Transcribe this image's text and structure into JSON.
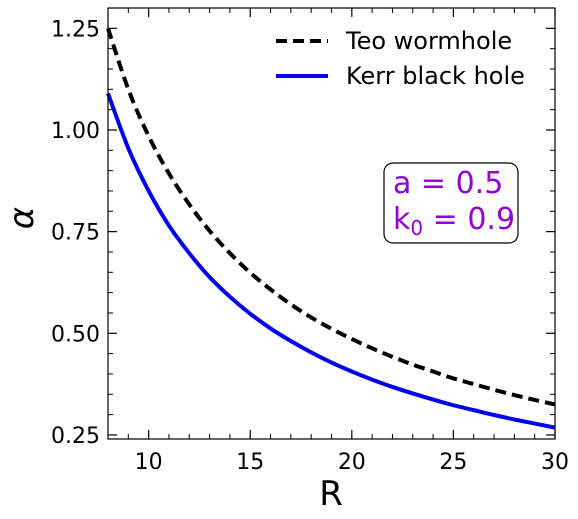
{
  "chart_data": {
    "type": "line",
    "xlabel": "R",
    "ylabel": "α",
    "xlim": [
      8,
      30
    ],
    "ylim": [
      0.24,
      1.3
    ],
    "x_ticks": [
      10,
      15,
      20,
      25,
      30
    ],
    "y_ticks": [
      0.25,
      0.5,
      0.75,
      1.0,
      1.25
    ],
    "x_tick_labels": [
      "10",
      "15",
      "20",
      "25",
      "30"
    ],
    "y_tick_labels": [
      "0.25",
      "0.50",
      "0.75",
      "1.00",
      "1.25"
    ],
    "legend_position": "top-right",
    "series": [
      {
        "name": "Teo wormhole",
        "color": "#000000",
        "style": "dashed",
        "x": [
          8,
          9,
          10,
          11,
          12,
          13,
          14,
          15,
          16,
          17,
          18,
          19,
          20,
          21,
          22,
          23,
          24,
          25,
          26,
          27,
          28,
          29,
          30
        ],
        "y": [
          1.25,
          1.1,
          0.985,
          0.893,
          0.817,
          0.752,
          0.697,
          0.649,
          0.608,
          0.571,
          0.539,
          0.511,
          0.486,
          0.463,
          0.442,
          0.423,
          0.406,
          0.389,
          0.375,
          0.361,
          0.348,
          0.336,
          0.325
        ]
      },
      {
        "name": "Kerr black hole",
        "color": "#0000EE",
        "style": "solid",
        "x": [
          8,
          9,
          10,
          11,
          12,
          13,
          14,
          15,
          16,
          17,
          18,
          19,
          20,
          21,
          22,
          23,
          24,
          25,
          26,
          27,
          28,
          29,
          30
        ],
        "y": [
          1.09,
          0.955,
          0.85,
          0.765,
          0.697,
          0.638,
          0.59,
          0.548,
          0.512,
          0.481,
          0.453,
          0.428,
          0.406,
          0.386,
          0.368,
          0.352,
          0.337,
          0.323,
          0.311,
          0.299,
          0.288,
          0.278,
          0.29
        ]
      }
    ],
    "annotation": {
      "line1_var": "a",
      "line1_eq": " = 0.5",
      "line2_var": "k",
      "line2_sub": "0",
      "line2_eq": " = 0.9"
    }
  }
}
